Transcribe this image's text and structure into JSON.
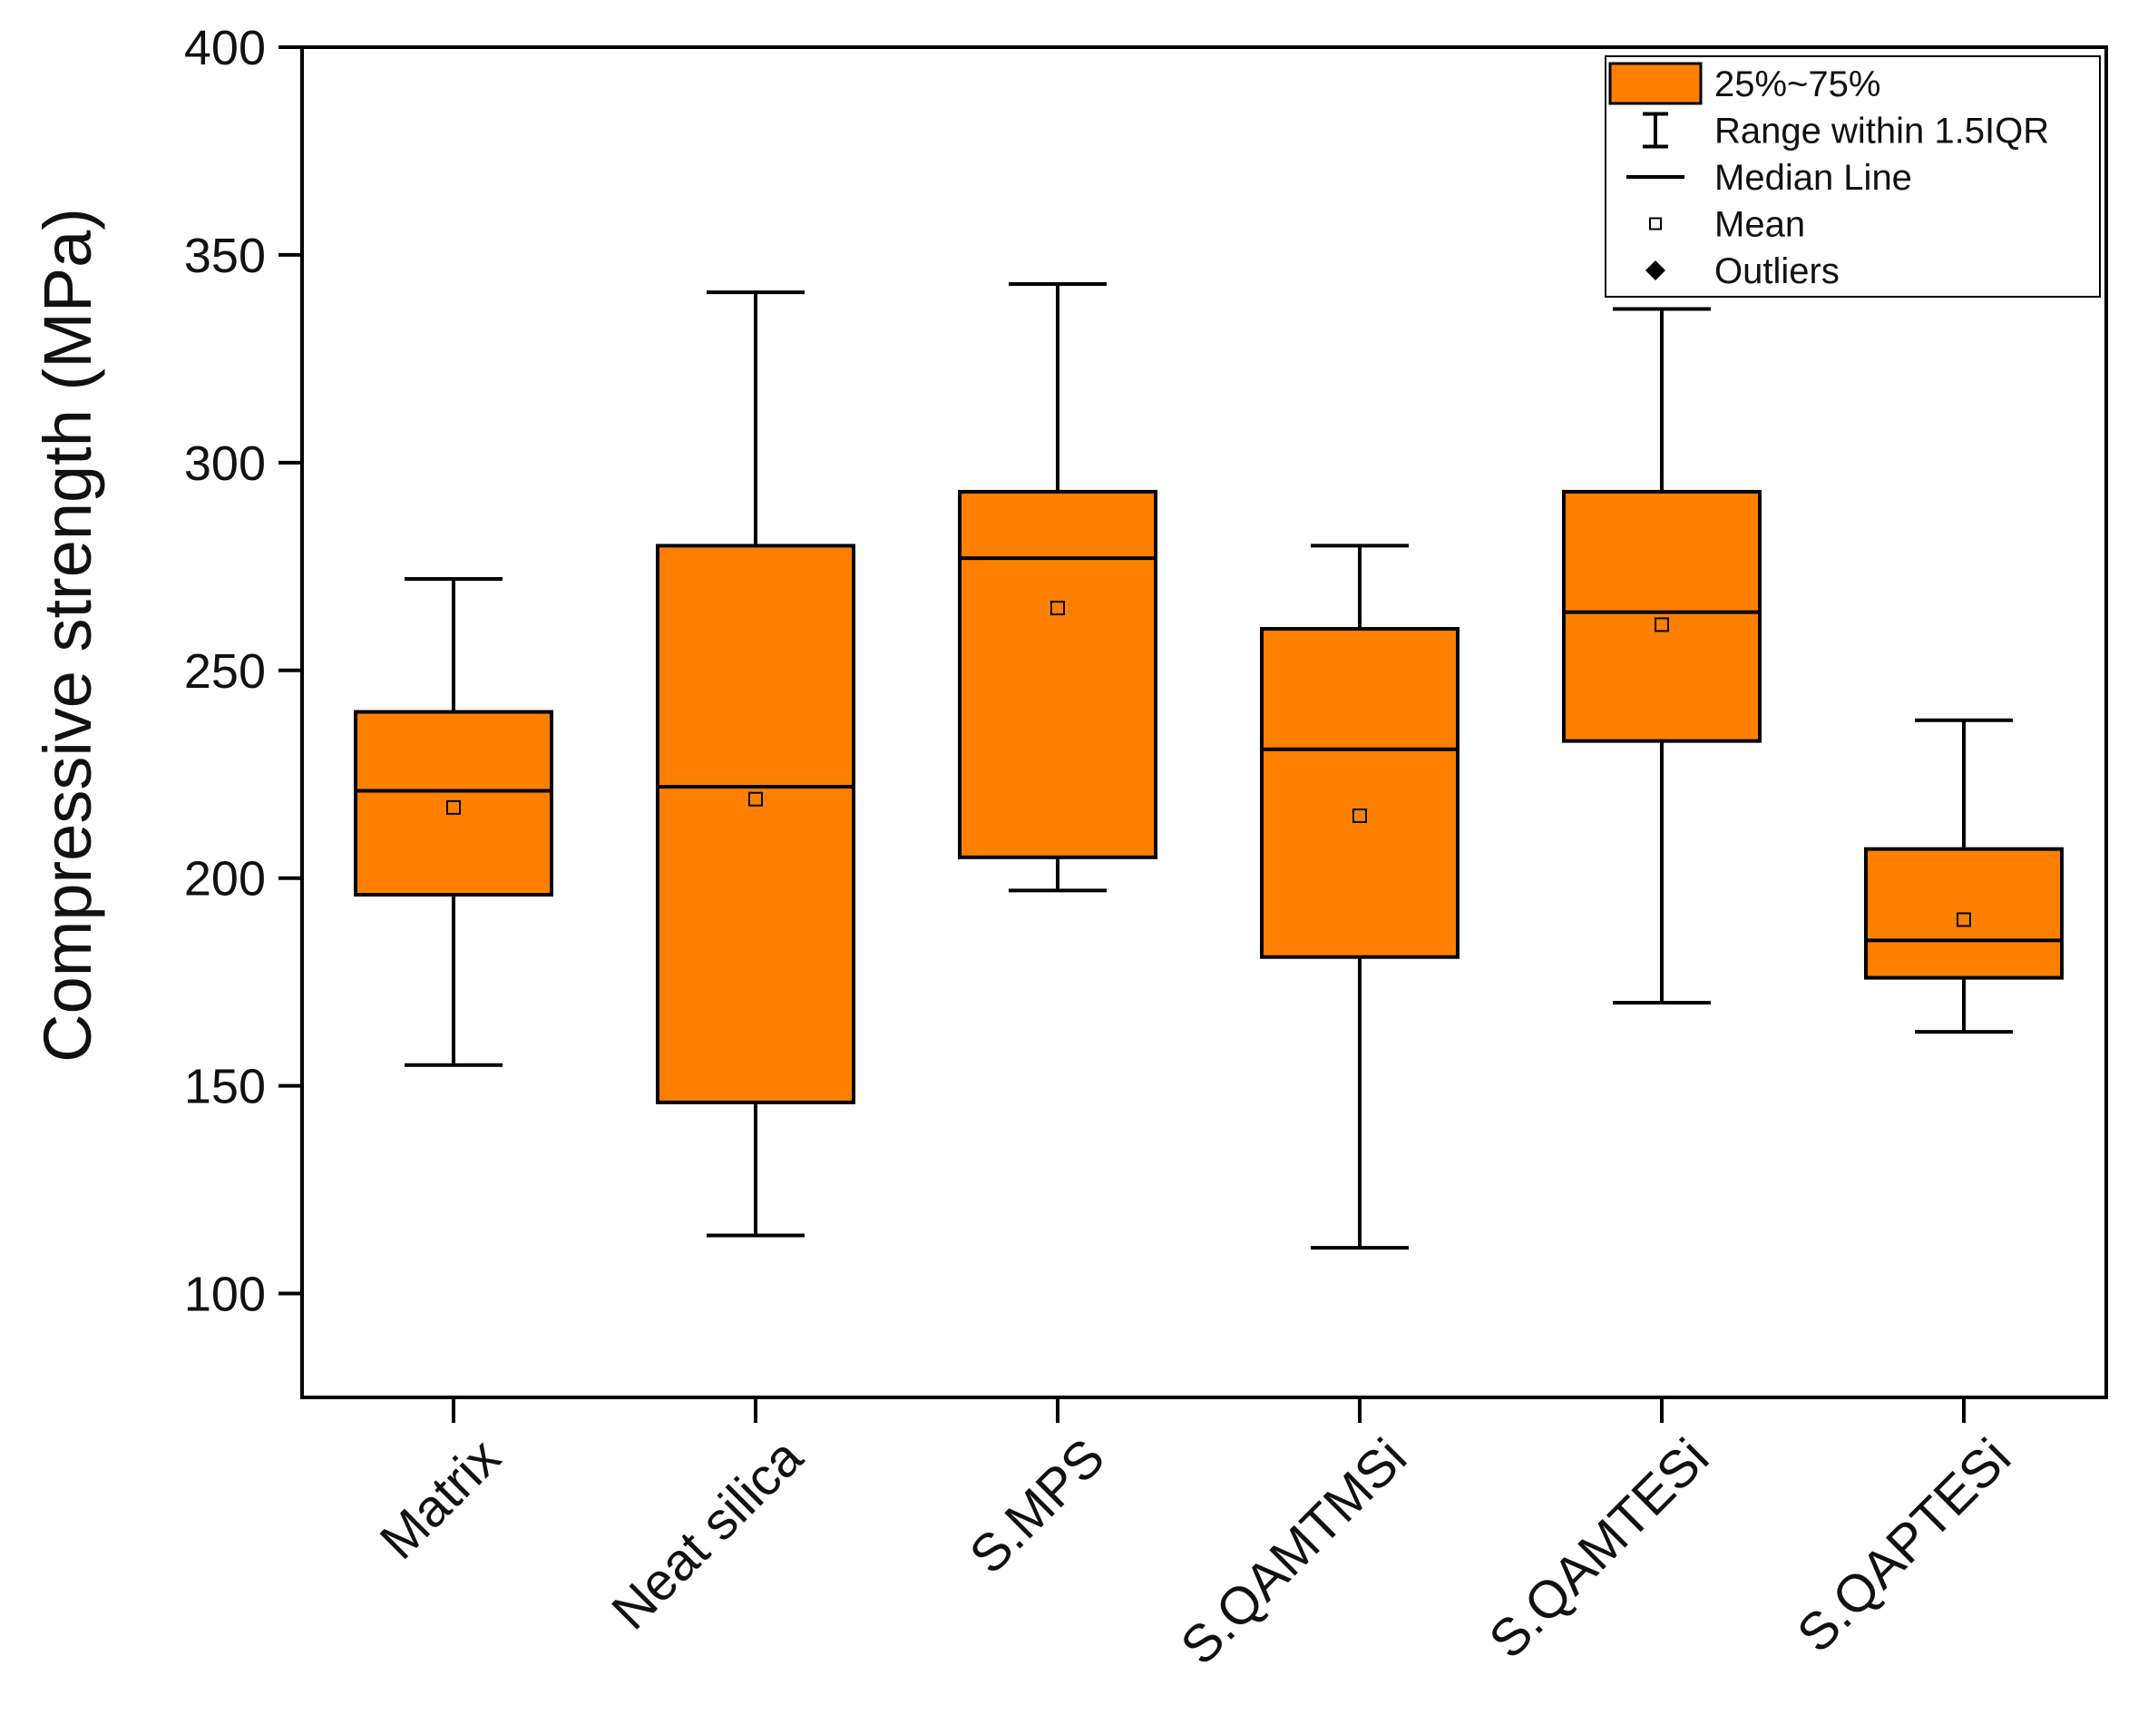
{
  "chart_data": {
    "type": "box",
    "ylabel": "Compressive strength (MPa)",
    "xlabel": "",
    "ylim": [
      75,
      400
    ],
    "yticks": [
      100,
      150,
      200,
      250,
      300,
      350,
      400
    ],
    "box_color": "#FF8000",
    "categories": [
      "Matrix",
      "Neat silica",
      "S.MPS",
      "S.QAMTMSi",
      "S.QAMTESi",
      "S.QAPTESi"
    ],
    "boxes": [
      {
        "name": "Matrix",
        "whisker_low": 155,
        "q1": 196,
        "median": 221,
        "q3": 240,
        "whisker_high": 272,
        "mean": 217
      },
      {
        "name": "Neat silica",
        "whisker_low": 114,
        "q1": 146,
        "median": 222,
        "q3": 280,
        "whisker_high": 341,
        "mean": 219
      },
      {
        "name": "S.MPS",
        "whisker_low": 197,
        "q1": 205,
        "median": 277,
        "q3": 293,
        "whisker_high": 343,
        "mean": 265
      },
      {
        "name": "S.QAMTMSi",
        "whisker_low": 111,
        "q1": 181,
        "median": 231,
        "q3": 260,
        "whisker_high": 280,
        "mean": 215
      },
      {
        "name": "S.QAMTESi",
        "whisker_low": 170,
        "q1": 233,
        "median": 264,
        "q3": 293,
        "whisker_high": 337,
        "mean": 261
      },
      {
        "name": "S.QAPTESi",
        "whisker_low": 163,
        "q1": 176,
        "median": 185,
        "q3": 207,
        "whisker_high": 238,
        "mean": 190
      }
    ],
    "legend": {
      "placement": "top-right",
      "entries": [
        {
          "key": "box",
          "label": "25%~75%"
        },
        {
          "key": "whisker",
          "label": "Range within 1.5IQR"
        },
        {
          "key": "median",
          "label": "Median Line"
        },
        {
          "key": "mean",
          "label": "Mean"
        },
        {
          "key": "outlier",
          "label": "Outliers"
        }
      ]
    }
  }
}
